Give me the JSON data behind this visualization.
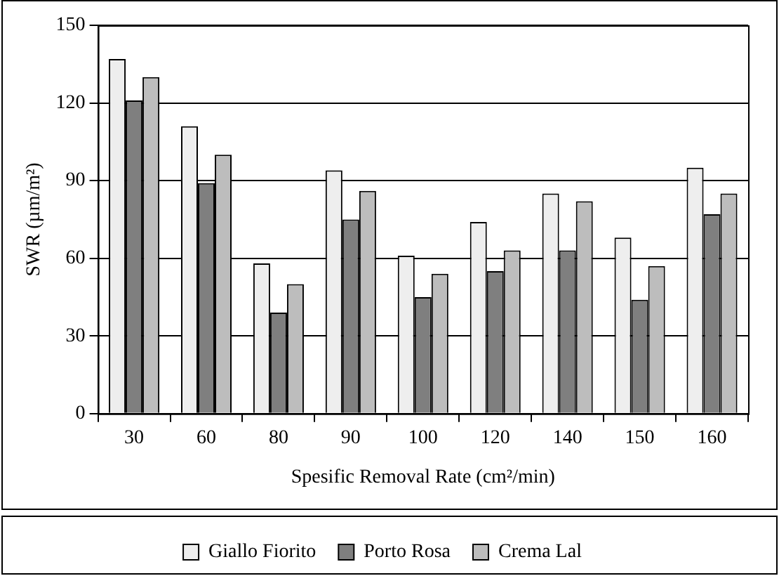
{
  "chart_data": {
    "type": "bar",
    "xlabel": "Spesific Removal Rate (cm²/min)",
    "ylabel": "SWR (µm/m²)",
    "categories": [
      "30",
      "60",
      "80",
      "90",
      "100",
      "120",
      "140",
      "150",
      "160"
    ],
    "series": [
      {
        "name": "Giallo Fiorito",
        "color": "#eeeeee",
        "values": [
          137,
          111,
          58,
          94,
          61,
          74,
          85,
          68,
          95
        ]
      },
      {
        "name": "Porto Rosa",
        "color": "#7f7f7f",
        "values": [
          121,
          89,
          39,
          75,
          45,
          55,
          63,
          44,
          77
        ]
      },
      {
        "name": "Crema Lal",
        "color": "#bdbdbd",
        "values": [
          130,
          100,
          50,
          86,
          54,
          63,
          82,
          57,
          85
        ]
      }
    ],
    "ylim": [
      0,
      150
    ],
    "yticks": [
      0,
      30,
      60,
      90,
      120,
      150
    ],
    "grid": "y",
    "legend": "bottom"
  }
}
